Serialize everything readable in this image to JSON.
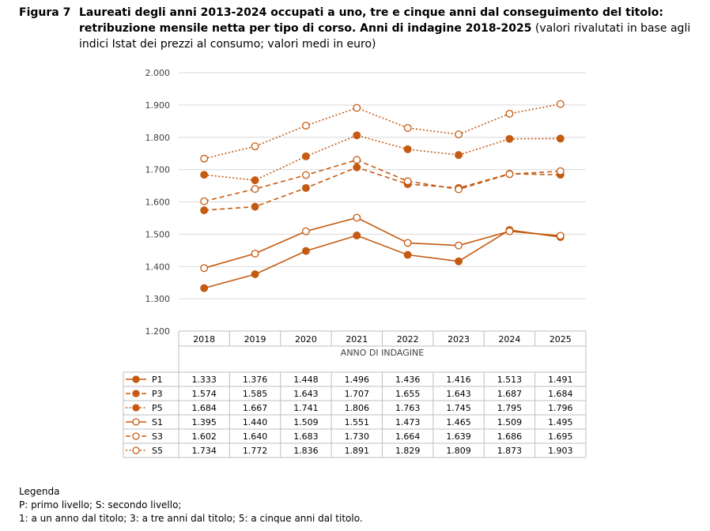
{
  "caption": {
    "number": "Figura 7",
    "title": "Laureati degli anni 2013-2024 occupati a uno, tre e cinque anni dal conseguimento del titolo: retribuzione mensile netta per tipo di corso. Anni di indagine 2018-2025",
    "note": "(valori rivalutati in base agli indici Istat dei prezzi al consumo; valori medi in euro)"
  },
  "legend": {
    "heading": "Legenda",
    "line1": "P: primo livello; S: secondo livello;",
    "line2": "1: a un anno dal titolo; 3: a tre anni dal titolo; 5: a cinque anni dal titolo."
  },
  "colors": {
    "series": "#C55A11",
    "grid": "#D9D9D9",
    "table_border": "#BFBFBF",
    "axis_text": "#404040"
  },
  "chart_data": {
    "type": "line",
    "title": "",
    "xlabel": "ANNO DI INDAGINE",
    "ylabel": "",
    "ylim": [
      1200,
      2000
    ],
    "yticks": [
      1200,
      1300,
      1400,
      1500,
      1600,
      1700,
      1800,
      1900,
      2000
    ],
    "ytick_labels": [
      "1.200",
      "1.300",
      "1.400",
      "1.500",
      "1.600",
      "1.700",
      "1.800",
      "1.900",
      "2.000"
    ],
    "grid": true,
    "legend": "data-table-below",
    "categories": [
      "2018",
      "2019",
      "2020",
      "2021",
      "2022",
      "2023",
      "2024",
      "2025"
    ],
    "series": [
      {
        "name": "P1",
        "marker": "filled",
        "dash": "solid",
        "values": [
          1333,
          1376,
          1448,
          1496,
          1436,
          1416,
          1513,
          1491
        ],
        "labels": [
          "1.333",
          "1.376",
          "1.448",
          "1.496",
          "1.436",
          "1.416",
          "1.513",
          "1.491"
        ]
      },
      {
        "name": "P3",
        "marker": "filled",
        "dash": "dashed",
        "values": [
          1574,
          1585,
          1643,
          1707,
          1655,
          1643,
          1687,
          1684
        ],
        "labels": [
          "1.574",
          "1.585",
          "1.643",
          "1.707",
          "1.655",
          "1.643",
          "1.687",
          "1.684"
        ]
      },
      {
        "name": "P5",
        "marker": "filled",
        "dash": "dotted",
        "values": [
          1684,
          1667,
          1741,
          1806,
          1763,
          1745,
          1795,
          1796
        ],
        "labels": [
          "1.684",
          "1.667",
          "1.741",
          "1.806",
          "1.763",
          "1.745",
          "1.795",
          "1.796"
        ]
      },
      {
        "name": "S1",
        "marker": "hollow",
        "dash": "solid",
        "values": [
          1395,
          1440,
          1509,
          1551,
          1473,
          1465,
          1509,
          1495
        ],
        "labels": [
          "1.395",
          "1.440",
          "1.509",
          "1.551",
          "1.473",
          "1.465",
          "1.509",
          "1.495"
        ]
      },
      {
        "name": "S3",
        "marker": "hollow",
        "dash": "dashed",
        "values": [
          1602,
          1640,
          1683,
          1730,
          1664,
          1639,
          1686,
          1695
        ],
        "labels": [
          "1.602",
          "1.640",
          "1.683",
          "1.730",
          "1.664",
          "1.639",
          "1.686",
          "1.695"
        ]
      },
      {
        "name": "S5",
        "marker": "hollow",
        "dash": "dotted",
        "values": [
          1734,
          1772,
          1836,
          1891,
          1829,
          1809,
          1873,
          1903
        ],
        "labels": [
          "1.734",
          "1.772",
          "1.836",
          "1.891",
          "1.829",
          "1.809",
          "1.873",
          "1.903"
        ]
      }
    ]
  }
}
